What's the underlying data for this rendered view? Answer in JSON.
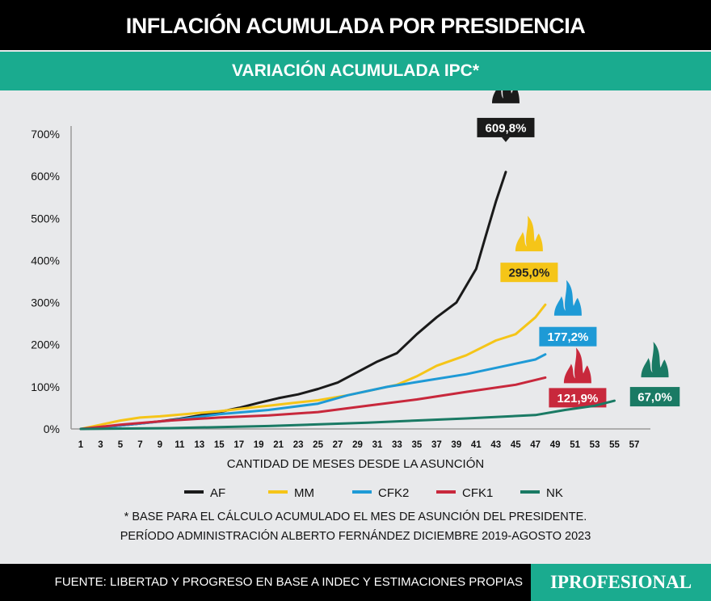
{
  "title": "INFLACIÓN ACUMULADA POR PRESIDENCIA",
  "subtitle": "VARIACIÓN ACUMULADA IPC*",
  "notes": [
    "* BASE PARA EL CÁLCULO ACUMULADO EL MES DE ASUNCIÓN DEL PRESIDENTE.",
    "PERÍODO ADMINISTRACIÓN ALBERTO FERNÁNDEZ DICIEMBRE 2019-AGOSTO 2023"
  ],
  "footer": {
    "source": "FUENTE: LIBERTAD Y PROGRESO EN BASE A INDEC Y ESTIMACIONES PROPIAS",
    "logo": "IPROFESIONAL"
  },
  "colors": {
    "title_bg": "#000000",
    "accent": "#1aab8f",
    "background": "#e8e9eb"
  },
  "chart_data": {
    "type": "line",
    "xlabel": "CANTIDAD DE MESES DESDE LA ASUNCIÓN",
    "ylabel": "",
    "xlim": [
      1,
      57
    ],
    "ylim": [
      0,
      700
    ],
    "x_ticks": [
      1,
      3,
      5,
      7,
      9,
      11,
      13,
      15,
      17,
      19,
      21,
      23,
      25,
      27,
      29,
      31,
      33,
      35,
      37,
      39,
      41,
      43,
      45,
      47,
      49,
      51,
      53,
      55,
      57
    ],
    "y_ticks": [
      "0%",
      "100%",
      "200%",
      "300%",
      "400%",
      "500%",
      "600%",
      "700%"
    ],
    "y_tick_values": [
      0,
      100,
      200,
      300,
      400,
      500,
      600,
      700
    ],
    "grid": false,
    "legend_position": "bottom",
    "end_icon": "flame-icon",
    "series": [
      {
        "name": "AF",
        "color": "#1a1a1a",
        "end_label": "609,8%",
        "x": [
          1,
          3,
          5,
          7,
          9,
          11,
          13,
          15,
          17,
          19,
          21,
          23,
          25,
          27,
          29,
          31,
          33,
          35,
          37,
          39,
          41,
          42,
          43,
          44
        ],
        "y": [
          0,
          4,
          8,
          13,
          18,
          24,
          32,
          40,
          50,
          62,
          73,
          82,
          95,
          110,
          135,
          160,
          180,
          225,
          265,
          300,
          380,
          460,
          540,
          610
        ]
      },
      {
        "name": "MM",
        "color": "#f5c518",
        "end_label": "295,0%",
        "x": [
          1,
          3,
          5,
          7,
          9,
          12,
          15,
          18,
          20,
          23,
          25,
          28,
          30,
          33,
          35,
          37,
          40,
          43,
          45,
          47,
          48
        ],
        "y": [
          0,
          10,
          20,
          27,
          30,
          36,
          42,
          50,
          55,
          63,
          68,
          80,
          90,
          105,
          125,
          150,
          175,
          210,
          225,
          265,
          295
        ]
      },
      {
        "name": "CFK2",
        "color": "#1e9ad6",
        "end_label": "177,2%",
        "x": [
          1,
          5,
          10,
          15,
          20,
          25,
          28,
          32,
          36,
          40,
          44,
          47,
          48
        ],
        "y": [
          0,
          8,
          20,
          35,
          45,
          60,
          80,
          100,
          115,
          130,
          150,
          165,
          177
        ]
      },
      {
        "name": "CFK1",
        "color": "#c8283c",
        "end_label": "121,9%",
        "x": [
          1,
          5,
          10,
          15,
          20,
          25,
          30,
          35,
          40,
          45,
          48
        ],
        "y": [
          0,
          10,
          20,
          27,
          32,
          40,
          55,
          70,
          88,
          105,
          122
        ]
      },
      {
        "name": "NK",
        "color": "#1a7a64",
        "end_label": "67,0%",
        "x": [
          1,
          10,
          20,
          30,
          40,
          47,
          50,
          53,
          55
        ],
        "y": [
          0,
          2,
          7,
          15,
          25,
          33,
          45,
          55,
          67
        ]
      }
    ]
  }
}
